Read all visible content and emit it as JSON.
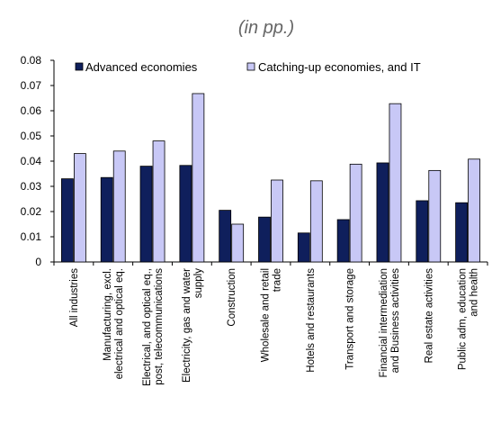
{
  "chart_data": {
    "type": "bar",
    "title": "",
    "subtitle": "(in pp.)",
    "xlabel": "",
    "ylabel": "",
    "ylim": [
      0,
      0.08
    ],
    "yticks": [
      "0",
      "0.01",
      "0.02",
      "0.03",
      "0.04",
      "0.05",
      "0.06",
      "0.07",
      "0.08"
    ],
    "grid": false,
    "legend_position": "top",
    "categories": [
      [
        "All industries"
      ],
      [
        "Manufacturing, excl.",
        "electrical and optical eq."
      ],
      [
        "Electrical, and optical eq.,",
        "post, telecommunications"
      ],
      [
        "Electricity, gas and water",
        "supply"
      ],
      [
        "Construction"
      ],
      [
        "Wholesale and retail",
        "trade"
      ],
      [
        "Hotels and restaurants"
      ],
      [
        "Transport and storage"
      ],
      [
        "Financial intermediation",
        "and Business activities"
      ],
      [
        "Real estate activities"
      ],
      [
        "Public adm, education",
        "and health"
      ]
    ],
    "series": [
      {
        "name": "Advanced economies",
        "color": "#0f1f5c",
        "values": [
          0.033,
          0.0335,
          0.038,
          0.0383,
          0.0205,
          0.0178,
          0.0115,
          0.0168,
          0.0393,
          0.0243,
          0.0235
        ]
      },
      {
        "name": "Catching-up economies, and IT",
        "color": "#c8c8f6",
        "values": [
          0.043,
          0.044,
          0.048,
          0.0668,
          0.015,
          0.0325,
          0.0322,
          0.0388,
          0.0628,
          0.0363,
          0.0408
        ]
      }
    ]
  }
}
